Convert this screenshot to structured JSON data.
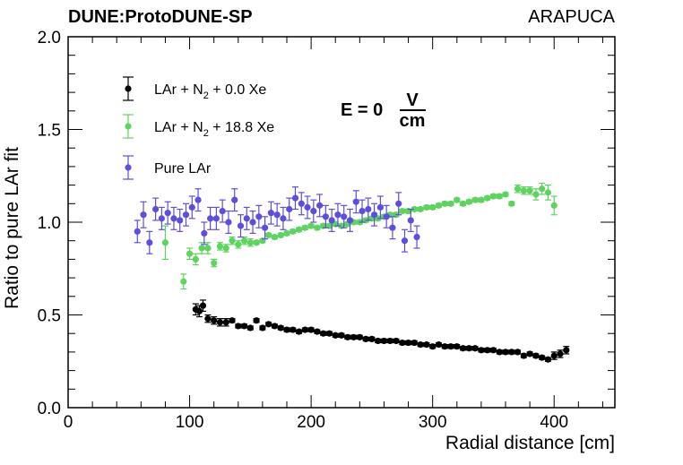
{
  "header": {
    "collaboration": "DUNE:ProtoDUNE-SP",
    "detector": "ARAPUCA"
  },
  "annotation": {
    "field_prefix": "E = 0",
    "field_num": "V",
    "field_den": "cm"
  },
  "chart_data": {
    "type": "scatter",
    "title": "",
    "xlabel": "Radial distance [cm]",
    "ylabel": "Ratio to pure LAr fit",
    "xlim": [
      0,
      450
    ],
    "ylim": [
      0.0,
      2.0
    ],
    "xticks": [
      "0",
      "100",
      "200",
      "300",
      "400"
    ],
    "yticks": [
      "0.0",
      "0.5",
      "1.0",
      "1.5",
      "2.0"
    ],
    "legend": [
      "LAr + N2 + 0.0 Xe",
      "LAr + N2 + 18.8 Xe",
      "Pure LAr"
    ],
    "series": [
      {
        "name": "LAr + N2 + 0.0 Xe",
        "label_main": "LAr + N",
        "label_sub": "2",
        "label_tail": " + 0.0 Xe",
        "color": "#000000",
        "x": [
          105,
          108,
          111,
          115,
          120,
          125,
          130,
          135,
          140,
          145,
          150,
          155,
          160,
          165,
          170,
          175,
          180,
          185,
          190,
          195,
          200,
          205,
          210,
          215,
          220,
          225,
          230,
          235,
          240,
          245,
          250,
          255,
          260,
          265,
          270,
          275,
          280,
          285,
          290,
          295,
          300,
          305,
          310,
          315,
          320,
          325,
          330,
          335,
          340,
          345,
          350,
          355,
          360,
          365,
          370,
          375,
          380,
          385,
          390,
          395,
          400,
          405,
          410
        ],
        "y": [
          0.53,
          0.52,
          0.55,
          0.48,
          0.47,
          0.46,
          0.46,
          0.47,
          0.44,
          0.44,
          0.43,
          0.47,
          0.43,
          0.45,
          0.44,
          0.43,
          0.42,
          0.42,
          0.41,
          0.42,
          0.42,
          0.41,
          0.4,
          0.4,
          0.39,
          0.39,
          0.38,
          0.38,
          0.38,
          0.37,
          0.37,
          0.36,
          0.36,
          0.36,
          0.36,
          0.35,
          0.35,
          0.35,
          0.34,
          0.34,
          0.33,
          0.34,
          0.33,
          0.33,
          0.33,
          0.32,
          0.32,
          0.32,
          0.31,
          0.31,
          0.31,
          0.3,
          0.3,
          0.3,
          0.3,
          0.28,
          0.29,
          0.28,
          0.27,
          0.26,
          0.28,
          0.29,
          0.31
        ],
        "err": [
          0.03,
          0.03,
          0.03,
          0.02,
          0.02,
          0.02,
          0.02,
          0.01,
          0.01,
          0.01,
          0.01,
          0.01,
          0.01,
          0.01,
          0.01,
          0.01,
          0.01,
          0.01,
          0.01,
          0.01,
          0.01,
          0.01,
          0.01,
          0.01,
          0.01,
          0.01,
          0.01,
          0.01,
          0.01,
          0.01,
          0.01,
          0.01,
          0.01,
          0.01,
          0.01,
          0.01,
          0.01,
          0.01,
          0.01,
          0.01,
          0.01,
          0.01,
          0.01,
          0.01,
          0.01,
          0.01,
          0.01,
          0.01,
          0.01,
          0.01,
          0.01,
          0.01,
          0.01,
          0.01,
          0.01,
          0.01,
          0.01,
          0.01,
          0.01,
          0.01,
          0.02,
          0.02,
          0.02
        ]
      },
      {
        "name": "LAr + N2 + 18.8 Xe",
        "label_main": "LAr + N",
        "label_sub": "2",
        "label_tail": " + 18.8 Xe",
        "color": "#5fd35f",
        "x": [
          80,
          95,
          100,
          105,
          110,
          115,
          120,
          125,
          130,
          135,
          140,
          145,
          150,
          155,
          160,
          165,
          170,
          175,
          180,
          185,
          190,
          195,
          200,
          205,
          210,
          215,
          220,
          225,
          230,
          235,
          240,
          245,
          250,
          255,
          260,
          265,
          270,
          275,
          280,
          285,
          290,
          295,
          300,
          305,
          310,
          315,
          320,
          325,
          330,
          335,
          340,
          345,
          350,
          355,
          360,
          365,
          370,
          375,
          380,
          385,
          390,
          395,
          400
        ],
        "y": [
          0.89,
          0.68,
          0.83,
          0.8,
          0.86,
          0.86,
          0.78,
          0.87,
          0.86,
          0.9,
          0.88,
          0.9,
          0.89,
          0.89,
          0.9,
          0.93,
          0.92,
          0.93,
          0.94,
          0.95,
          0.96,
          0.97,
          0.98,
          0.97,
          0.98,
          0.98,
          0.99,
          0.98,
          0.99,
          1.0,
          1.0,
          1.01,
          1.02,
          1.02,
          1.03,
          1.04,
          1.04,
          1.06,
          1.06,
          1.07,
          1.07,
          1.08,
          1.08,
          1.09,
          1.1,
          1.1,
          1.12,
          1.1,
          1.11,
          1.12,
          1.12,
          1.13,
          1.14,
          1.14,
          1.15,
          1.1,
          1.18,
          1.17,
          1.17,
          1.15,
          1.18,
          1.16,
          1.09
        ],
        "err": [
          0.09,
          0.04,
          0.03,
          0.03,
          0.03,
          0.03,
          0.02,
          0.02,
          0.02,
          0.02,
          0.02,
          0.02,
          0.02,
          0.01,
          0.01,
          0.01,
          0.01,
          0.01,
          0.01,
          0.01,
          0.01,
          0.01,
          0.01,
          0.01,
          0.01,
          0.01,
          0.01,
          0.01,
          0.01,
          0.01,
          0.01,
          0.01,
          0.01,
          0.01,
          0.01,
          0.01,
          0.01,
          0.01,
          0.01,
          0.01,
          0.01,
          0.01,
          0.01,
          0.01,
          0.01,
          0.01,
          0.01,
          0.01,
          0.01,
          0.01,
          0.01,
          0.01,
          0.01,
          0.01,
          0.01,
          0.01,
          0.02,
          0.02,
          0.02,
          0.03,
          0.03,
          0.04,
          0.05
        ]
      },
      {
        "name": "Pure LAr",
        "label_main": "Pure LAr",
        "label_sub": "",
        "label_tail": "",
        "color": "#5b4fdc",
        "x": [
          57,
          62,
          67,
          72,
          77,
          82,
          87,
          92,
          97,
          102,
          107,
          112,
          117,
          122,
          127,
          132,
          137,
          142,
          147,
          152,
          157,
          162,
          167,
          172,
          177,
          182,
          187,
          192,
          197,
          202,
          207,
          212,
          217,
          222,
          227,
          232,
          237,
          242,
          247,
          252,
          257,
          262,
          267,
          272,
          277,
          282,
          287
        ],
        "y": [
          0.95,
          1.04,
          0.89,
          1.07,
          1.02,
          1.05,
          1.02,
          1.01,
          1.04,
          1.08,
          1.12,
          0.94,
          1.02,
          1.02,
          1.06,
          1.0,
          1.12,
          0.98,
          1.02,
          1.0,
          1.03,
          0.97,
          1.05,
          1.04,
          1.02,
          1.07,
          1.13,
          1.1,
          1.08,
          1.06,
          1.09,
          1.03,
          1.01,
          1.04,
          1.03,
          1.01,
          1.11,
          1.06,
          1.07,
          1.04,
          1.08,
          1.03,
          0.97,
          1.1,
          0.9,
          1.01,
          0.92
        ],
        "err": [
          0.06,
          0.07,
          0.06,
          0.06,
          0.06,
          0.06,
          0.06,
          0.06,
          0.06,
          0.06,
          0.06,
          0.06,
          0.06,
          0.06,
          0.06,
          0.06,
          0.06,
          0.06,
          0.06,
          0.06,
          0.06,
          0.06,
          0.06,
          0.06,
          0.06,
          0.06,
          0.06,
          0.06,
          0.06,
          0.06,
          0.06,
          0.06,
          0.06,
          0.06,
          0.06,
          0.06,
          0.06,
          0.06,
          0.06,
          0.06,
          0.06,
          0.06,
          0.06,
          0.06,
          0.06,
          0.06,
          0.06
        ]
      }
    ]
  }
}
